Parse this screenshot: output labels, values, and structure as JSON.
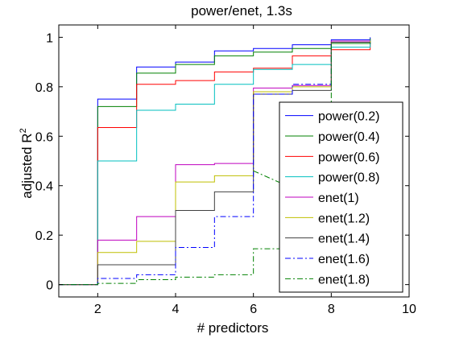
{
  "chart_data": {
    "type": "line",
    "title": "power/enet, 1.3s",
    "xlabel": "# predictors",
    "ylabel": "adjusted R",
    "ylabel_sup": "2",
    "xlim": [
      1,
      10
    ],
    "ylim": [
      -0.05,
      1.05
    ],
    "xticks": [
      2,
      4,
      6,
      8,
      10
    ],
    "yticks": [
      0,
      0.2,
      0.4,
      0.6,
      0.8,
      1
    ],
    "xtick_labels": [
      "2",
      "4",
      "6",
      "8",
      "10"
    ],
    "ytick_labels": [
      "0",
      "0.2",
      "0.4",
      "0.6",
      "0.8",
      "1"
    ],
    "grid": false,
    "legend_position": "bottom-right",
    "series": [
      {
        "name": "power(0.2)",
        "color": "#0000ff",
        "style": "solid",
        "x": [
          1,
          2,
          3,
          4,
          5,
          6,
          7,
          8,
          9
        ],
        "y": [
          0,
          0.75,
          0.88,
          0.9,
          0.945,
          0.955,
          0.97,
          0.99,
          1.0
        ]
      },
      {
        "name": "power(0.4)",
        "color": "#008000",
        "style": "solid",
        "x": [
          1,
          2,
          3,
          4,
          5,
          6,
          7,
          8,
          9
        ],
        "y": [
          0,
          0.72,
          0.855,
          0.89,
          0.925,
          0.94,
          0.955,
          0.975,
          0.995
        ]
      },
      {
        "name": "power(0.6)",
        "color": "#ff0000",
        "style": "solid",
        "x": [
          1,
          2,
          3,
          4,
          5,
          6,
          7,
          8,
          9
        ],
        "y": [
          0,
          0.635,
          0.81,
          0.825,
          0.86,
          0.875,
          0.925,
          0.95,
          0.99
        ]
      },
      {
        "name": "power(0.8)",
        "color": "#00bfbf",
        "style": "solid",
        "x": [
          1,
          2,
          3,
          4,
          5,
          6,
          7,
          8,
          9
        ],
        "y": [
          0,
          0.5,
          0.705,
          0.73,
          0.81,
          0.87,
          0.89,
          0.96,
          0.99
        ]
      },
      {
        "name": "enet(1)",
        "color": "#bf00bf",
        "style": "solid",
        "x": [
          1,
          2,
          3,
          4,
          5,
          6,
          7,
          8,
          9
        ],
        "y": [
          0,
          0.18,
          0.275,
          0.485,
          0.49,
          0.795,
          0.805,
          0.985,
          0.985
        ]
      },
      {
        "name": "enet(1.2)",
        "color": "#bfbf00",
        "style": "solid",
        "x": [
          1,
          2,
          3,
          4,
          5,
          6,
          7,
          8,
          9
        ],
        "y": [
          0,
          0.13,
          0.175,
          0.415,
          0.44,
          0.78,
          0.8,
          0.98,
          0.985
        ]
      },
      {
        "name": "enet(1.4)",
        "color": "#404040",
        "style": "solid",
        "x": [
          1,
          2,
          3,
          4,
          5,
          6,
          7,
          8,
          9
        ],
        "y": [
          0,
          0.08,
          0.08,
          0.3,
          0.375,
          0.77,
          0.785,
          0.98,
          0.98
        ]
      },
      {
        "name": "enet(1.6)",
        "color": "#0000ff",
        "style": "dashdot",
        "x": [
          1,
          2,
          3,
          4,
          5,
          6,
          7,
          8,
          9
        ],
        "y": [
          0,
          0.025,
          0.04,
          0.15,
          0.275,
          0.77,
          0.81,
          0.975,
          0.98
        ]
      },
      {
        "name": "enet(1.8)",
        "color": "#008000",
        "style": "dashdot",
        "x": [
          1,
          2,
          3,
          4,
          5,
          6,
          7,
          8,
          9
        ],
        "y": [
          0,
          0.005,
          0.02,
          0.03,
          0.04,
          0.145,
          0.71,
          0.975,
          0.98
        ]
      }
    ],
    "annotations": [
      {
        "series": "enet(1.8)",
        "x": [
          6,
          7
        ],
        "y": [
          0.46,
          0.39
        ],
        "style": "dashdot",
        "color": "#008000"
      }
    ]
  }
}
